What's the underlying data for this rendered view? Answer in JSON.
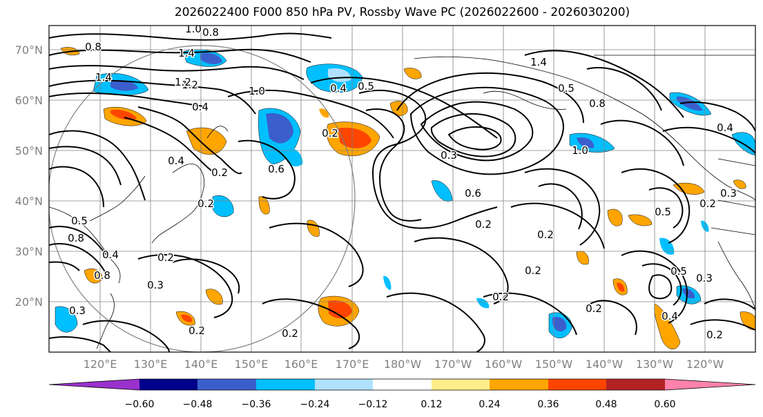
{
  "title": "2026022400 F000 850 hPa PV, Rossby Wave PC (2026022600 - 2026030200)",
  "lat_labels": [
    "70°N",
    "60°N",
    "50°N",
    "40°N",
    "30°N",
    "20°N"
  ],
  "lon_labels": [
    "120°E",
    "130°E",
    "140°E",
    "150°E",
    "160°E",
    "170°E",
    "180°W",
    "170°W",
    "160°W",
    "150°W",
    "140°W",
    "130°W",
    "120°W"
  ],
  "colorbar": {
    "colors": [
      "#9932cc",
      "#00008b",
      "#3a5fcd",
      "#00bfff",
      "#b0e2ff",
      "#ffffff",
      "#ffec8b",
      "#ffa500",
      "#ff4500",
      "#b22222",
      "#ff82ab"
    ],
    "tick_labels": [
      "−0.60",
      "−0.48",
      "−0.36",
      "−0.24",
      "−0.12",
      "0.12",
      "0.24",
      "0.36",
      "0.48",
      "0.60"
    ]
  },
  "contour_labels": [
    "1.0",
    "0.8",
    "1.4",
    "1.2",
    "0.8",
    "1.4",
    "1.2",
    "1.0",
    "0.4",
    "0.5",
    "0.4",
    "0.2",
    "0.4",
    "0.6",
    "0.2",
    "0.2",
    "0.5",
    "0.8",
    "0.4",
    "0.2",
    "0.3",
    "0.6",
    "0.3",
    "0.5",
    "0.2",
    "0.8",
    "1.0",
    "1.4",
    "0.8",
    "0.4",
    "0.5",
    "0.2",
    "0.3",
    "0.5",
    "0.2",
    "0.2",
    "0.2",
    "0.2",
    "0.4",
    "0.3",
    "0.2",
    "0.3",
    "0.2",
    "0.2"
  ]
}
